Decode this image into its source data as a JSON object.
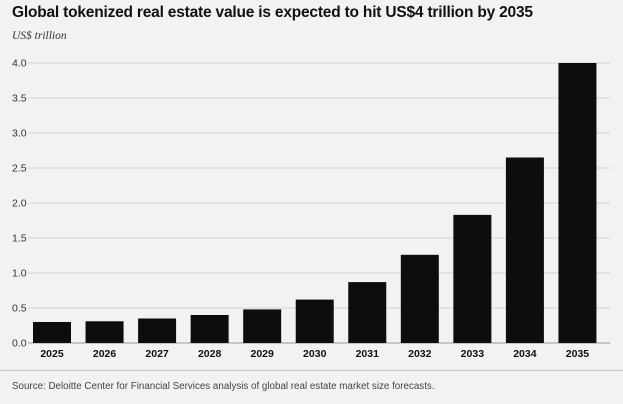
{
  "title": "Global tokenized real estate value is expected to hit US$4 trillion by 2035",
  "unit_label": "US$ trillion",
  "source": "Source: Deloitte Center for Financial Services analysis of global real estate market size forecasts.",
  "chart_data": {
    "type": "bar",
    "title": "Global tokenized real estate value is expected to hit US$4 trillion by 2035",
    "xlabel": "",
    "ylabel": "US$ trillion",
    "categories": [
      "2025",
      "2026",
      "2027",
      "2028",
      "2029",
      "2030",
      "2031",
      "2032",
      "2033",
      "2034",
      "2035"
    ],
    "values": [
      0.3,
      0.31,
      0.35,
      0.4,
      0.48,
      0.62,
      0.87,
      1.26,
      1.83,
      2.65,
      4.0
    ],
    "ylim": [
      0,
      4.0
    ],
    "yticks": [
      "0.0",
      "0.5",
      "1.0",
      "1.5",
      "2.0",
      "2.5",
      "3.0",
      "3.5",
      "4.0"
    ],
    "grid": true,
    "bar_color": "#0d0d0d",
    "grid_color": "#d2d2d2"
  }
}
